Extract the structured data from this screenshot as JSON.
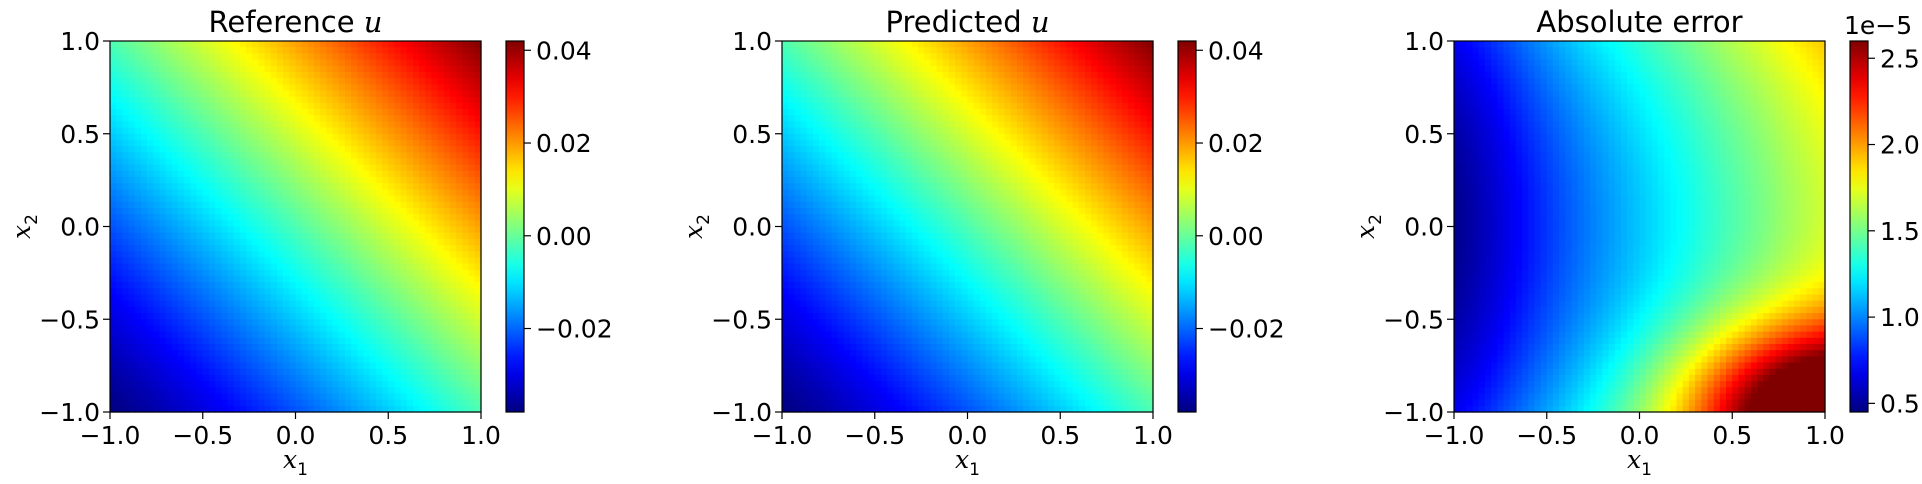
{
  "chart_data": [
    {
      "type": "heatmap",
      "title": "Reference u",
      "title_main": "Reference ",
      "title_var": "u",
      "xlabel_base": "x",
      "xlabel_sub": "1",
      "ylabel_base": "x",
      "ylabel_sub": "2",
      "x_range": [
        -1.0,
        1.0
      ],
      "y_range": [
        -1.0,
        1.0
      ],
      "x_ticks": [
        -1.0,
        -0.5,
        0.0,
        0.5,
        1.0
      ],
      "y_ticks": [
        -1.0,
        -0.5,
        0.0,
        0.5,
        1.0
      ],
      "x_tick_labels": [
        "−1.0",
        "−0.5",
        "0.0",
        "0.5",
        "1.0"
      ],
      "y_tick_labels": [
        "−1.0",
        "−0.5",
        "0.0",
        "0.5",
        "1.0"
      ],
      "colormap": "jet",
      "field_description": "value increases along the diagonal, minimum at (-1,-1), maximum at (1,1)",
      "field_model": "diagonal",
      "value_range": [
        -0.038,
        0.042
      ],
      "colorbar": {
        "min": -0.038,
        "max": 0.042,
        "ticks": [
          -0.02,
          0.0,
          0.02,
          0.04
        ],
        "tick_labels": [
          "−0.02",
          "0.00",
          "0.02",
          "0.04"
        ],
        "offset_label": ""
      }
    },
    {
      "type": "heatmap",
      "title": "Predicted u",
      "title_main": "Predicted ",
      "title_var": "u",
      "xlabel_base": "x",
      "xlabel_sub": "1",
      "ylabel_base": "x",
      "ylabel_sub": "2",
      "x_range": [
        -1.0,
        1.0
      ],
      "y_range": [
        -1.0,
        1.0
      ],
      "x_ticks": [
        -1.0,
        -0.5,
        0.0,
        0.5,
        1.0
      ],
      "y_ticks": [
        -1.0,
        -0.5,
        0.0,
        0.5,
        1.0
      ],
      "x_tick_labels": [
        "−1.0",
        "−0.5",
        "0.0",
        "0.5",
        "1.0"
      ],
      "y_tick_labels": [
        "−1.0",
        "−0.5",
        "0.0",
        "0.5",
        "1.0"
      ],
      "colormap": "jet",
      "field_description": "value increases along the diagonal, minimum at (-1,-1), maximum at (1,1)",
      "field_model": "diagonal",
      "value_range": [
        -0.038,
        0.042
      ],
      "colorbar": {
        "min": -0.038,
        "max": 0.042,
        "ticks": [
          -0.02,
          0.0,
          0.02,
          0.04
        ],
        "tick_labels": [
          "−0.02",
          "0.00",
          "0.02",
          "0.04"
        ],
        "offset_label": ""
      }
    },
    {
      "type": "heatmap",
      "title": "Absolute error",
      "title_main": "Absolute error",
      "title_var": "",
      "xlabel_base": "x",
      "xlabel_sub": "1",
      "ylabel_base": "x",
      "ylabel_sub": "2",
      "x_range": [
        -1.0,
        1.0
      ],
      "y_range": [
        -1.0,
        1.0
      ],
      "x_ticks": [
        -1.0,
        -0.5,
        0.0,
        0.5,
        1.0
      ],
      "y_ticks": [
        -1.0,
        -0.5,
        0.0,
        0.5,
        1.0
      ],
      "x_tick_labels": [
        "−1.0",
        "−0.5",
        "0.0",
        "0.5",
        "1.0"
      ],
      "y_tick_labels": [
        "−1.0",
        "−0.5",
        "0.0",
        "0.5",
        "1.0"
      ],
      "colormap": "jet",
      "field_description": "minimum near (-1,0), rising toward the right edge; maximum at (1,-1)",
      "field_model": "error",
      "value_range": [
        4.5e-06,
        2.6e-05
      ],
      "colorbar": {
        "min": 4.5e-06,
        "max": 2.6e-05,
        "ticks": [
          5e-06,
          1e-05,
          1.5e-05,
          2e-05,
          2.5e-05
        ],
        "tick_labels": [
          "0.5",
          "1.0",
          "1.5",
          "2.0",
          "2.5"
        ],
        "offset_label": "1e−5"
      }
    }
  ]
}
